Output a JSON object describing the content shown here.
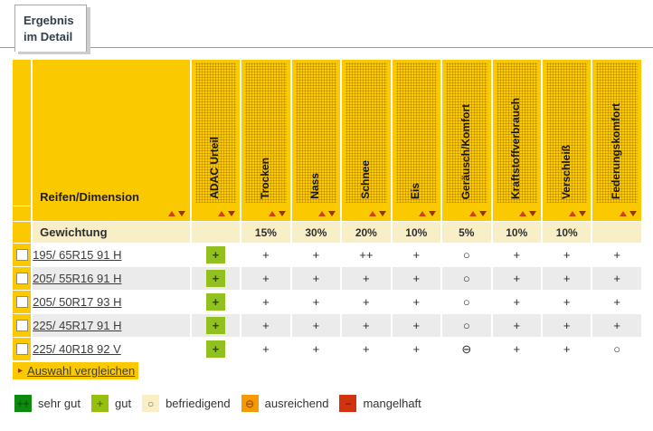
{
  "tab": {
    "line1": "Ergebnis",
    "line2": "im Detail"
  },
  "table": {
    "row_header": "Reifen/Dimension",
    "columns": [
      "ADAC Urteil",
      "Trocken",
      "Nass",
      "Schnee",
      "Eis",
      "Geräusch/Komfort",
      "Kraftstoffverbrauch",
      "Verschleiß",
      "Federungskomfort"
    ],
    "weights_label": "Gewichtung",
    "weights": [
      "",
      "15%",
      "30%",
      "20%",
      "10%",
      "5%",
      "10%",
      "10%",
      ""
    ],
    "rows": [
      {
        "name": "195/ 65R15 91 H",
        "ratings": [
          "+",
          "+",
          "+",
          "++",
          "+",
          "○",
          "+",
          "+",
          "+"
        ]
      },
      {
        "name": "205/ 55R16 91 H",
        "ratings": [
          "+",
          "+",
          "+",
          "+",
          "+",
          "○",
          "+",
          "+",
          "+"
        ]
      },
      {
        "name": "205/ 50R17 93 H",
        "ratings": [
          "+",
          "+",
          "+",
          "+",
          "+",
          "○",
          "+",
          "+",
          "+"
        ]
      },
      {
        "name": "225/ 45R17 91 H",
        "ratings": [
          "+",
          "+",
          "+",
          "+",
          "+",
          "○",
          "+",
          "+",
          "+"
        ]
      },
      {
        "name": "225/ 40R18 92 V",
        "ratings": [
          "+",
          "+",
          "+",
          "+",
          "+",
          "⊖",
          "+",
          "+",
          "○"
        ]
      }
    ]
  },
  "compare_button": {
    "label": "Auswahl vergleichen",
    "bullet": "▸"
  },
  "legend": [
    {
      "symbol": "++",
      "label": "sehr gut",
      "box_color": "#0f8a10",
      "symbol_color": "#0a5c0c"
    },
    {
      "symbol": "+",
      "label": "gut",
      "box_color": "#97bf0d",
      "symbol_color": "#5d7a06"
    },
    {
      "symbol": "○",
      "label": "befriedigend",
      "box_color": "#faefc4",
      "symbol_color": "#6b6b5e"
    },
    {
      "symbol": "⊖",
      "label": "ausreichend",
      "box_color": "#f59b00",
      "symbol_color": "#a95b00"
    },
    {
      "symbol": "−",
      "label": "mangelhaft",
      "box_color": "#d2330f",
      "symbol_color": "#8f1a04"
    }
  ],
  "colors": {
    "header_yellow": "#fbc900",
    "weights_bg": "#f9efc6",
    "row_alt": "#ebebeb",
    "green_box": "#92c01f",
    "green_box_symbol": "#2f4a04",
    "arrow_up": "#d2410e",
    "arrow_down": "#9c2f08",
    "tab_text": "#333f48",
    "link_text": "#3c3c3c"
  }
}
